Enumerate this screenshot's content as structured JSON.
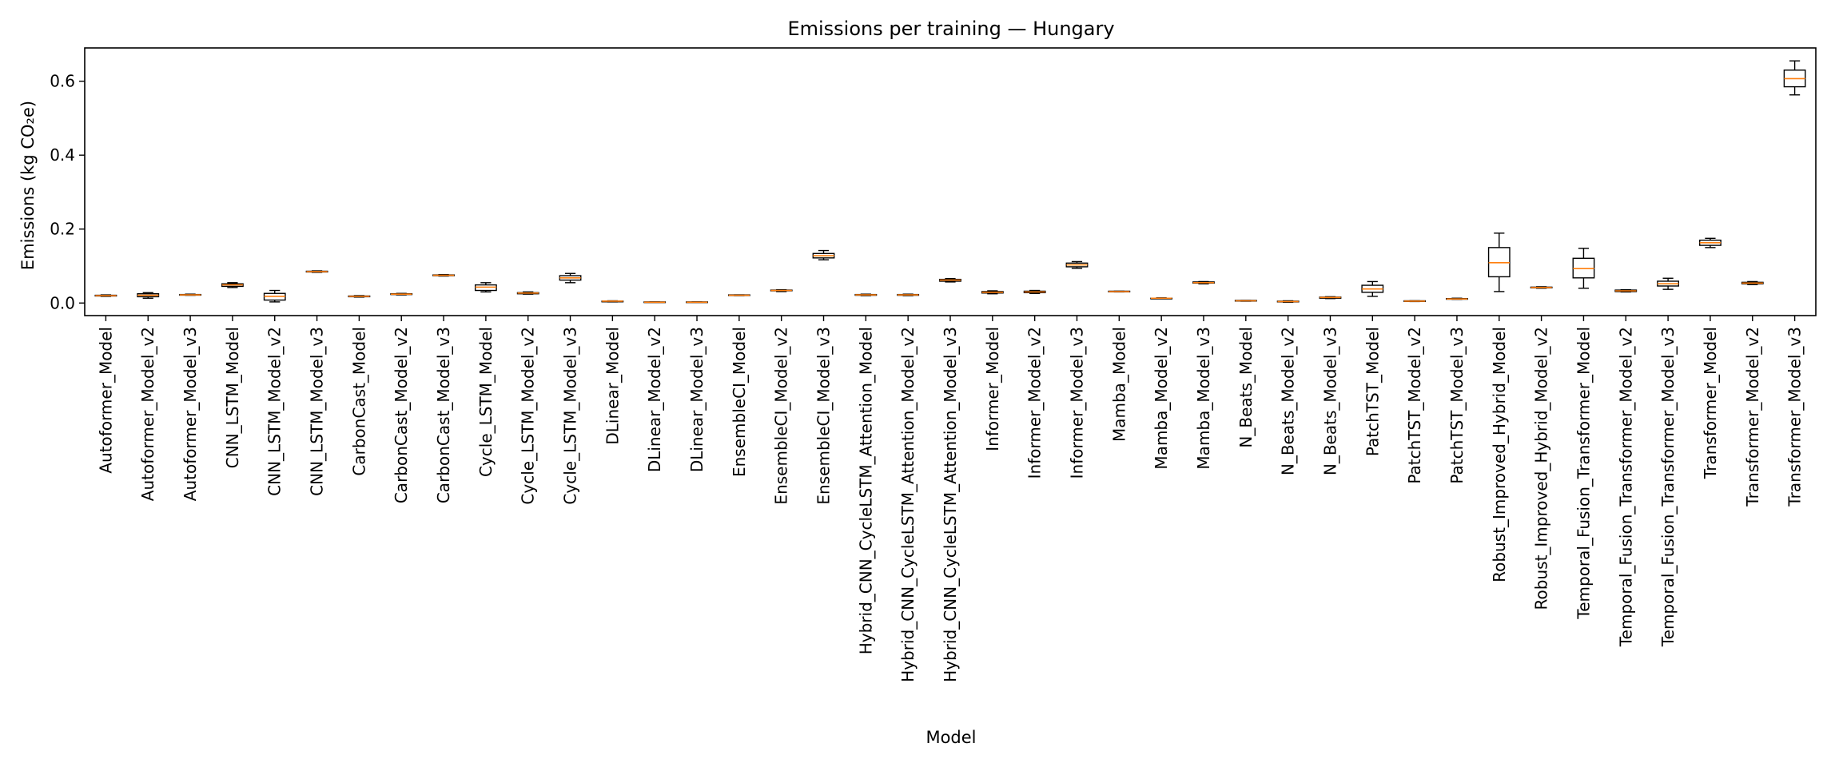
{
  "chart_data": {
    "type": "box",
    "title": "Emissions per training — Hungary",
    "xlabel": "Model",
    "ylabel": "Emissions (kg CO₂e)",
    "ylim": [
      -0.034,
      0.69
    ],
    "yticks": [
      0.0,
      0.2,
      0.4,
      0.6
    ],
    "ytick_labels": [
      "0.0",
      "0.2",
      "0.4",
      "0.6"
    ],
    "grid": false,
    "colors": {
      "box": "#000000",
      "median": "#ff7f0e"
    },
    "categories": [
      "Autoformer_Model",
      "Autoformer_Model_v2",
      "Autoformer_Model_v3",
      "CNN_LSTM_Model",
      "CNN_LSTM_Model_v2",
      "CNN_LSTM_Model_v3",
      "CarbonCast_Model",
      "CarbonCast_Model_v2",
      "CarbonCast_Model_v3",
      "Cycle_LSTM_Model",
      "Cycle_LSTM_Model_v2",
      "Cycle_LSTM_Model_v3",
      "DLinear_Model",
      "DLinear_Model_v2",
      "DLinear_Model_v3",
      "EnsembleCI_Model",
      "EnsembleCI_Model_v2",
      "EnsembleCI_Model_v3",
      "Hybrid_CNN_CycleLSTM_Attention_Model",
      "Hybrid_CNN_CycleLSTM_Attention_Model_v2",
      "Hybrid_CNN_CycleLSTM_Attention_Model_v3",
      "Informer_Model",
      "Informer_Model_v2",
      "Informer_Model_v3",
      "Mamba_Model",
      "Mamba_Model_v2",
      "Mamba_Model_v3",
      "N_Beats_Model",
      "N_Beats_Model_v2",
      "N_Beats_Model_v3",
      "PatchTST_Model",
      "PatchTST_Model_v2",
      "PatchTST_Model_v3",
      "Robust_Improved_Hybrid_Model",
      "Robust_Improved_Hybrid_Model_v2",
      "Temporal_Fusion_Transformer_Model",
      "Temporal_Fusion_Transformer_Model_v2",
      "Temporal_Fusion_Transformer_Model_v3",
      "Transformer_Model",
      "Transformer_Model_v2",
      "Transformer_Model_v3"
    ],
    "boxes": [
      {
        "whislo": 0.018,
        "q1": 0.019,
        "med": 0.02,
        "q3": 0.021,
        "whishi": 0.022
      },
      {
        "whislo": 0.013,
        "q1": 0.017,
        "med": 0.021,
        "q3": 0.025,
        "whishi": 0.028
      },
      {
        "whislo": 0.021,
        "q1": 0.022,
        "med": 0.022,
        "q3": 0.023,
        "whishi": 0.024
      },
      {
        "whislo": 0.042,
        "q1": 0.045,
        "med": 0.049,
        "q3": 0.052,
        "whishi": 0.055
      },
      {
        "whislo": 0.003,
        "q1": 0.008,
        "med": 0.018,
        "q3": 0.026,
        "whishi": 0.034
      },
      {
        "whislo": 0.083,
        "q1": 0.084,
        "med": 0.085,
        "q3": 0.086,
        "whishi": 0.087
      },
      {
        "whislo": 0.016,
        "q1": 0.017,
        "med": 0.018,
        "q3": 0.019,
        "whishi": 0.02
      },
      {
        "whislo": 0.022,
        "q1": 0.023,
        "med": 0.024,
        "q3": 0.025,
        "whishi": 0.026
      },
      {
        "whislo": 0.073,
        "q1": 0.074,
        "med": 0.075,
        "q3": 0.076,
        "whishi": 0.077
      },
      {
        "whislo": 0.03,
        "q1": 0.034,
        "med": 0.043,
        "q3": 0.049,
        "whishi": 0.055
      },
      {
        "whislo": 0.024,
        "q1": 0.025,
        "med": 0.027,
        "q3": 0.028,
        "whishi": 0.03
      },
      {
        "whislo": 0.055,
        "q1": 0.062,
        "med": 0.068,
        "q3": 0.074,
        "whishi": 0.08
      },
      {
        "whislo": 0.003,
        "q1": 0.004,
        "med": 0.005,
        "q3": 0.005,
        "whishi": 0.006
      },
      {
        "whislo": 0.002,
        "q1": 0.002,
        "med": 0.002,
        "q3": 0.003,
        "whishi": 0.003
      },
      {
        "whislo": 0.002,
        "q1": 0.002,
        "med": 0.002,
        "q3": 0.003,
        "whishi": 0.003
      },
      {
        "whislo": 0.02,
        "q1": 0.021,
        "med": 0.021,
        "q3": 0.022,
        "whishi": 0.022
      },
      {
        "whislo": 0.031,
        "q1": 0.033,
        "med": 0.034,
        "q3": 0.035,
        "whishi": 0.036
      },
      {
        "whislo": 0.117,
        "q1": 0.122,
        "med": 0.128,
        "q3": 0.134,
        "whishi": 0.142
      },
      {
        "whislo": 0.02,
        "q1": 0.021,
        "med": 0.022,
        "q3": 0.023,
        "whishi": 0.024
      },
      {
        "whislo": 0.02,
        "q1": 0.021,
        "med": 0.022,
        "q3": 0.023,
        "whishi": 0.024
      },
      {
        "whislo": 0.057,
        "q1": 0.059,
        "med": 0.062,
        "q3": 0.064,
        "whishi": 0.066
      },
      {
        "whislo": 0.025,
        "q1": 0.027,
        "med": 0.029,
        "q3": 0.031,
        "whishi": 0.033
      },
      {
        "whislo": 0.026,
        "q1": 0.028,
        "med": 0.03,
        "q3": 0.032,
        "whishi": 0.034
      },
      {
        "whislo": 0.094,
        "q1": 0.098,
        "med": 0.103,
        "q3": 0.108,
        "whishi": 0.112
      },
      {
        "whislo": 0.03,
        "q1": 0.031,
        "med": 0.031,
        "q3": 0.032,
        "whishi": 0.032
      },
      {
        "whislo": 0.012,
        "q1": 0.012,
        "med": 0.013,
        "q3": 0.013,
        "whishi": 0.014
      },
      {
        "whislo": 0.052,
        "q1": 0.054,
        "med": 0.055,
        "q3": 0.057,
        "whishi": 0.058
      },
      {
        "whislo": 0.005,
        "q1": 0.006,
        "med": 0.006,
        "q3": 0.007,
        "whishi": 0.007
      },
      {
        "whislo": 0.002,
        "q1": 0.003,
        "med": 0.004,
        "q3": 0.005,
        "whishi": 0.006
      },
      {
        "whislo": 0.012,
        "q1": 0.013,
        "med": 0.015,
        "q3": 0.016,
        "whishi": 0.017
      },
      {
        "whislo": 0.018,
        "q1": 0.029,
        "med": 0.038,
        "q3": 0.048,
        "whishi": 0.058
      },
      {
        "whislo": 0.004,
        "q1": 0.005,
        "med": 0.005,
        "q3": 0.006,
        "whishi": 0.006
      },
      {
        "whislo": 0.01,
        "q1": 0.011,
        "med": 0.011,
        "q3": 0.012,
        "whishi": 0.013
      },
      {
        "whislo": 0.031,
        "q1": 0.071,
        "med": 0.109,
        "q3": 0.15,
        "whishi": 0.189
      },
      {
        "whislo": 0.04,
        "q1": 0.041,
        "med": 0.042,
        "q3": 0.043,
        "whishi": 0.044
      },
      {
        "whislo": 0.04,
        "q1": 0.068,
        "med": 0.093,
        "q3": 0.121,
        "whishi": 0.148
      },
      {
        "whislo": 0.03,
        "q1": 0.031,
        "med": 0.033,
        "q3": 0.035,
        "whishi": 0.036
      },
      {
        "whislo": 0.037,
        "q1": 0.046,
        "med": 0.052,
        "q3": 0.059,
        "whishi": 0.067
      },
      {
        "whislo": 0.15,
        "q1": 0.156,
        "med": 0.163,
        "q3": 0.17,
        "whishi": 0.175
      },
      {
        "whislo": 0.05,
        "q1": 0.052,
        "med": 0.054,
        "q3": 0.056,
        "whishi": 0.058
      },
      {
        "whislo": 0.563,
        "q1": 0.585,
        "med": 0.607,
        "q3": 0.63,
        "whishi": 0.655
      }
    ]
  }
}
